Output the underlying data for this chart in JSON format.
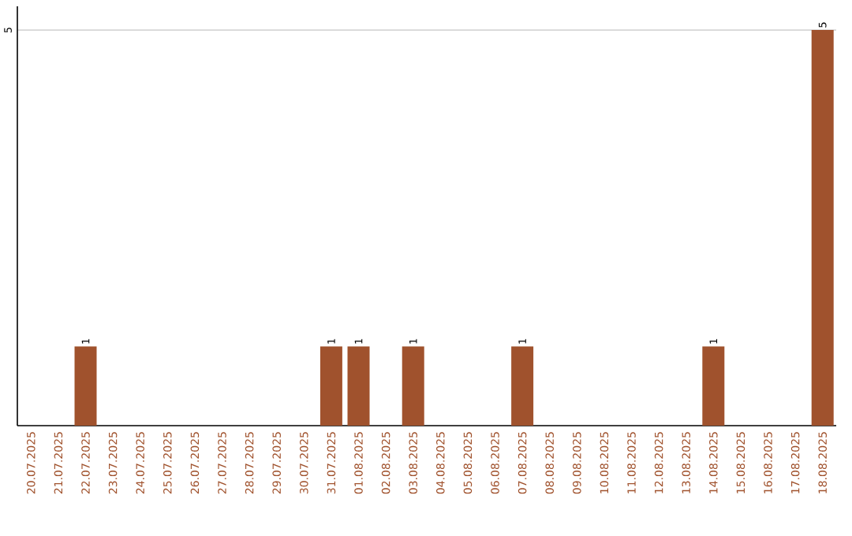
{
  "chart_data": {
    "type": "bar",
    "categories": [
      "20.07.2025",
      "21.07.2025",
      "22.07.2025",
      "23.07.2025",
      "24.07.2025",
      "25.07.2025",
      "26.07.2025",
      "27.07.2025",
      "28.07.2025",
      "29.07.2025",
      "30.07.2025",
      "31.07.2025",
      "01.08.2025",
      "02.08.2025",
      "03.08.2025",
      "04.08.2025",
      "05.08.2025",
      "06.08.2025",
      "07.08.2025",
      "08.08.2025",
      "09.08.2025",
      "10.08.2025",
      "11.08.2025",
      "12.08.2025",
      "13.08.2025",
      "14.08.2025",
      "15.08.2025",
      "16.08.2025",
      "17.08.2025",
      "18.08.2025"
    ],
    "values": [
      0,
      0,
      1,
      0,
      0,
      0,
      0,
      0,
      0,
      0,
      0,
      1,
      1,
      0,
      1,
      0,
      0,
      0,
      1,
      0,
      0,
      0,
      0,
      0,
      0,
      1,
      0,
      0,
      0,
      5
    ],
    "value_labels": [
      null,
      null,
      "1",
      null,
      null,
      null,
      null,
      null,
      null,
      null,
      null,
      "1",
      "1",
      null,
      "1",
      null,
      null,
      null,
      "1",
      null,
      null,
      null,
      null,
      null,
      null,
      "1",
      null,
      null,
      null,
      "5"
    ],
    "color": "#a0522d",
    "ylim": [
      0,
      5.3
    ],
    "yticks": [
      5
    ],
    "grid": "y"
  }
}
